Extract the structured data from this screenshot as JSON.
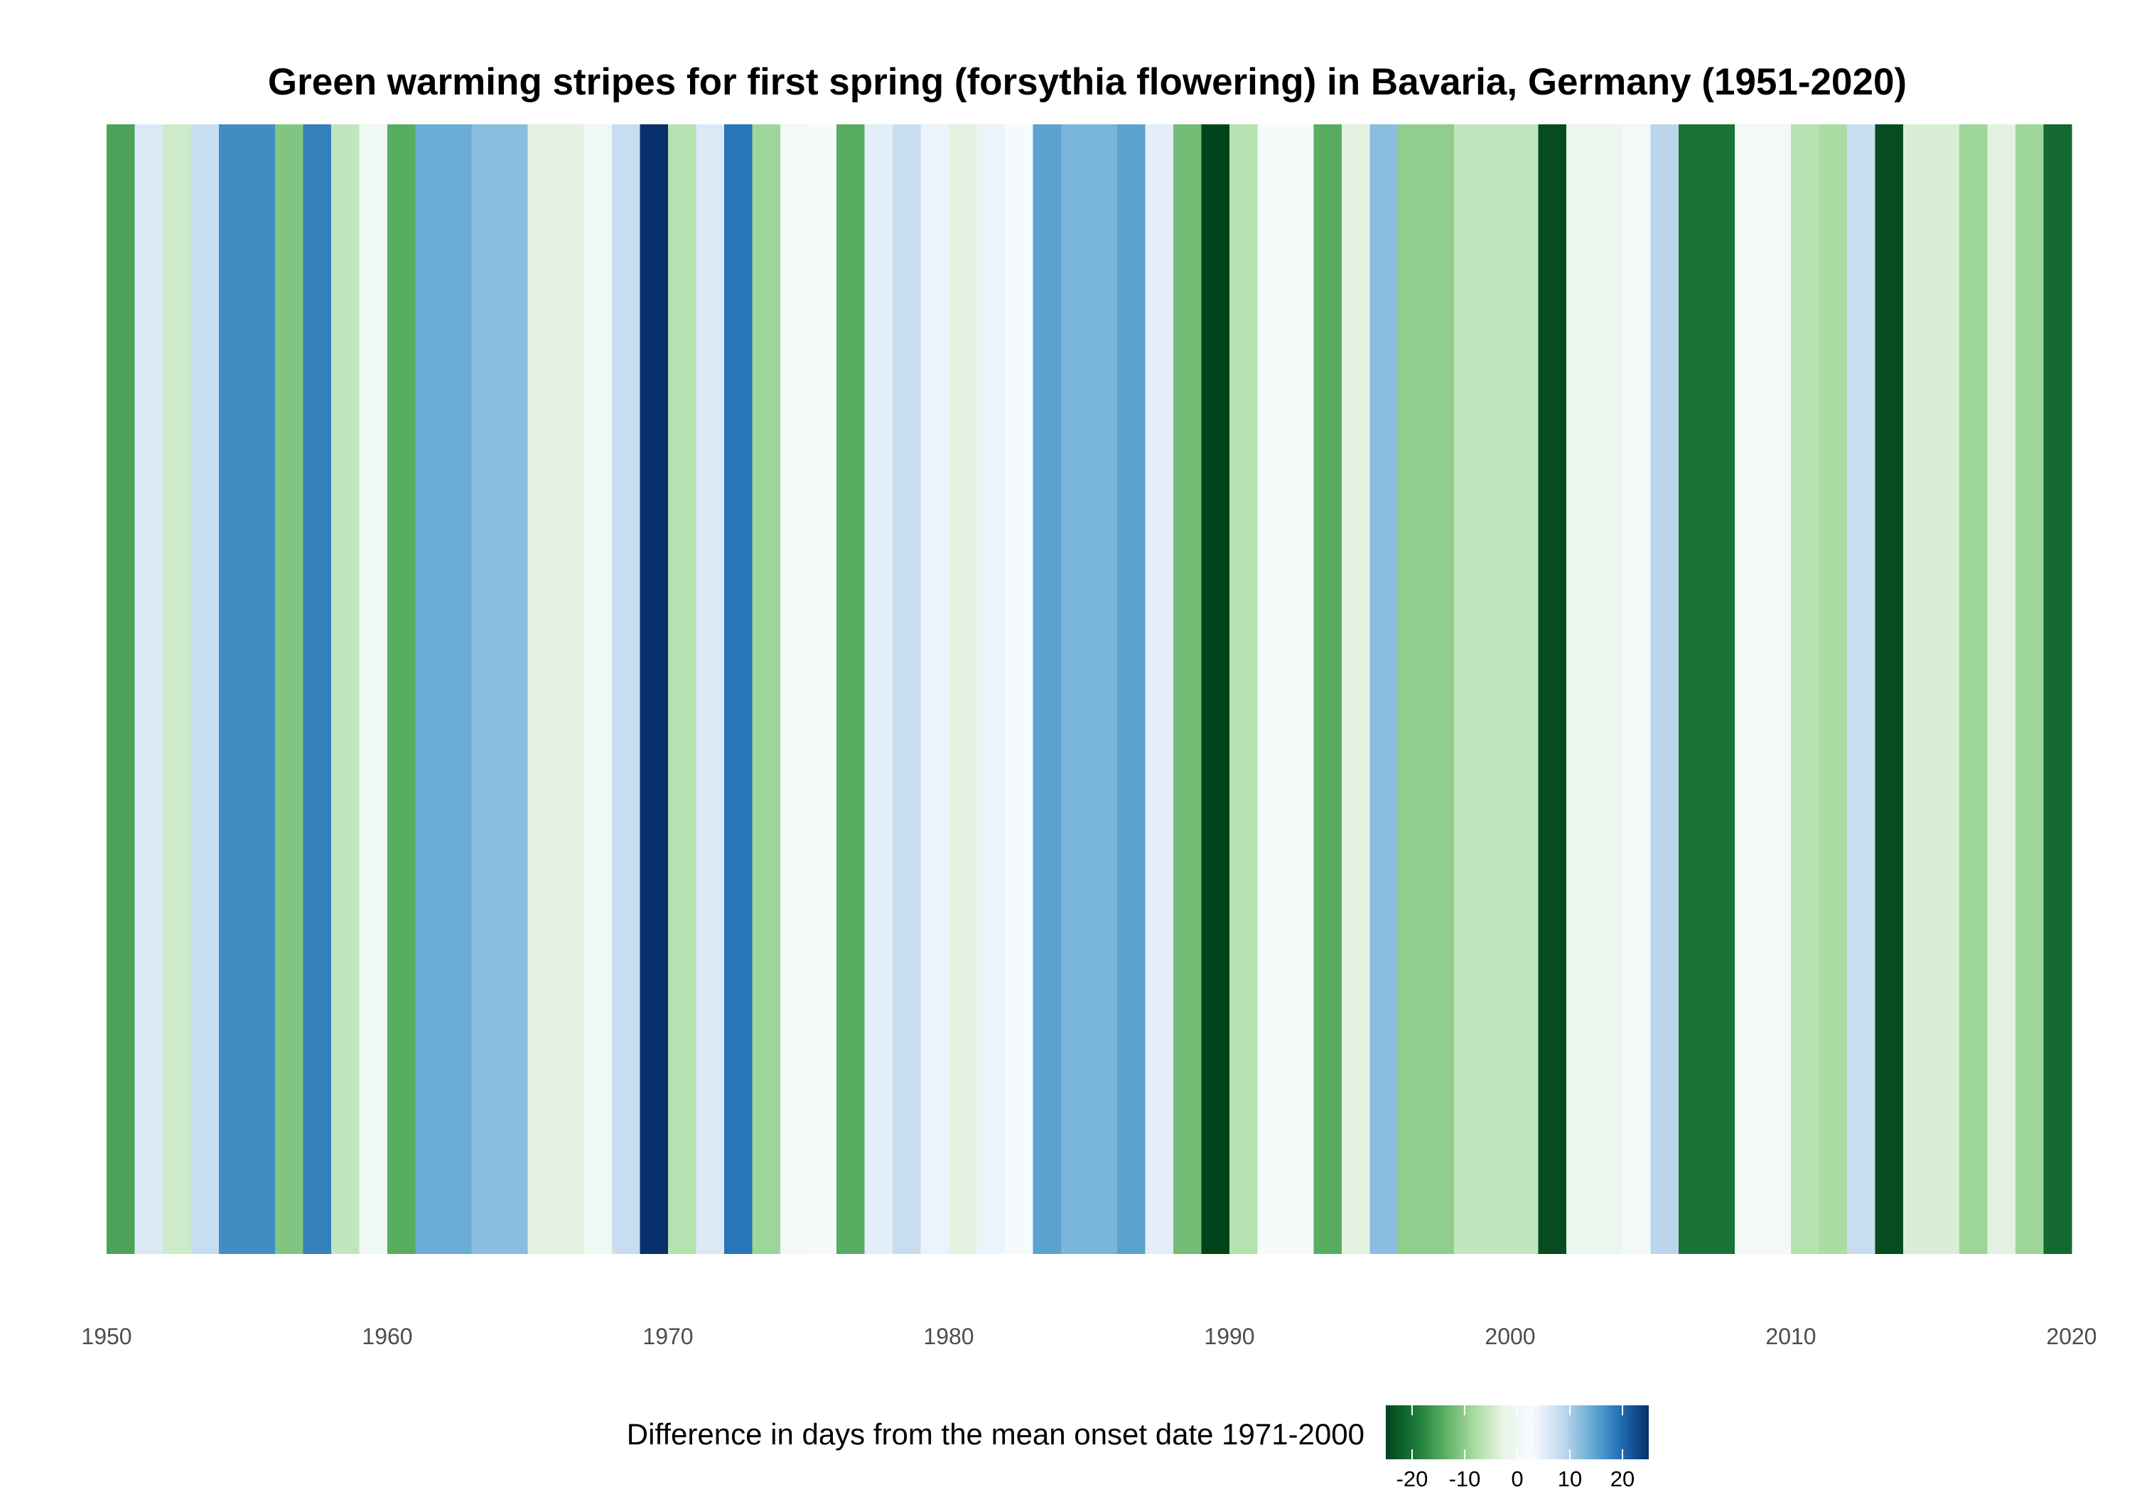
{
  "chart_data": {
    "type": "heatmap",
    "title": "Green warming stripes for first spring (forsythia flowering) in Bavaria, Germany (1951-2020)",
    "x": [
      1951,
      1952,
      1953,
      1954,
      1955,
      1956,
      1957,
      1958,
      1959,
      1960,
      1961,
      1962,
      1963,
      1964,
      1965,
      1966,
      1967,
      1968,
      1969,
      1970,
      1971,
      1972,
      1973,
      1974,
      1975,
      1976,
      1977,
      1978,
      1979,
      1980,
      1981,
      1982,
      1983,
      1984,
      1985,
      1986,
      1987,
      1988,
      1989,
      1990,
      1991,
      1992,
      1993,
      1994,
      1995,
      1996,
      1997,
      1998,
      1999,
      2000,
      2001,
      2002,
      2003,
      2004,
      2005,
      2006,
      2007,
      2008,
      2009,
      2010,
      2011,
      2012,
      2013,
      2014,
      2015,
      2016,
      2017,
      2018,
      2019,
      2020
    ],
    "values": [
      -15,
      6,
      -5,
      8,
      17,
      17,
      -11,
      18,
      -6,
      0,
      -14,
      14,
      14,
      12,
      12,
      -3,
      -3,
      0,
      8,
      25,
      -7,
      6,
      19,
      -9,
      1,
      2,
      -14,
      5,
      8,
      4,
      -3,
      4,
      3,
      15,
      13,
      13,
      15,
      5,
      -12,
      -27,
      -7,
      2,
      2,
      -14,
      -3,
      12,
      -10,
      -10,
      -6,
      -6,
      -6,
      -24,
      -1,
      -1,
      1,
      9,
      -20,
      -20,
      1,
      1,
      -7,
      -8,
      8,
      -24,
      -4,
      -4,
      -9,
      -3,
      -9,
      -21
    ],
    "xlim": [
      1950,
      2020
    ],
    "xticks": [
      "1950",
      "1960",
      "1970",
      "1980",
      "1990",
      "2000",
      "2010",
      "2020"
    ],
    "legend": {
      "title": "Difference in days from the mean onset date 1971-2000",
      "position": "bottom",
      "range": [
        -25,
        25
      ],
      "ticks": [
        "-20",
        "-10",
        "0",
        "10",
        "20"
      ],
      "colors": [
        "#00441b",
        "#1b7837",
        "#5aae61",
        "#a6dba0",
        "#e7f4e4",
        "#f7fbff",
        "#c6dbef",
        "#6baed6",
        "#2171b5",
        "#08306b"
      ]
    }
  }
}
